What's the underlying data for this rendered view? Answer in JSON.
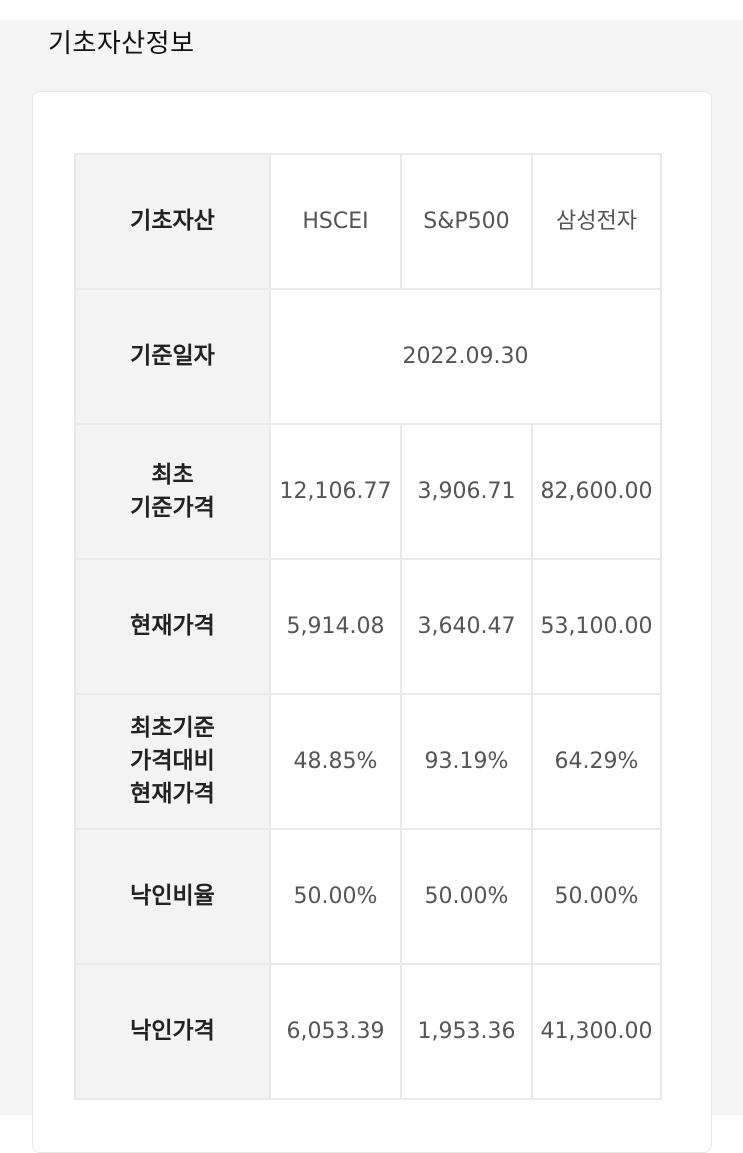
{
  "section": {
    "title": "기초자산정보"
  },
  "table": {
    "assets": [
      "HSCEI",
      "S&P500",
      "삼성전자"
    ],
    "rows": {
      "underlying": {
        "label": "기초자산"
      },
      "base_date": {
        "label": "기준일자",
        "value": "2022.09.30"
      },
      "initial_price": {
        "label_lines": [
          "최초",
          "기준가격"
        ],
        "values": [
          "12,106.77",
          "3,906.71",
          "82,600.00"
        ]
      },
      "current_price": {
        "label": "현재가격",
        "values": [
          "5,914.08",
          "3,640.47",
          "53,100.00"
        ]
      },
      "ratio": {
        "label_lines": [
          "최초기준",
          "가격대비",
          "현재가격"
        ],
        "values": [
          "48.85%",
          "93.19%",
          "64.29%"
        ]
      },
      "knockin_ratio": {
        "label": "낙인비율",
        "values": [
          "50.00%",
          "50.00%",
          "50.00%"
        ]
      },
      "knockin_price": {
        "label": "낙인가격",
        "values": [
          "6,053.39",
          "1,953.36",
          "41,300.00"
        ]
      }
    }
  }
}
